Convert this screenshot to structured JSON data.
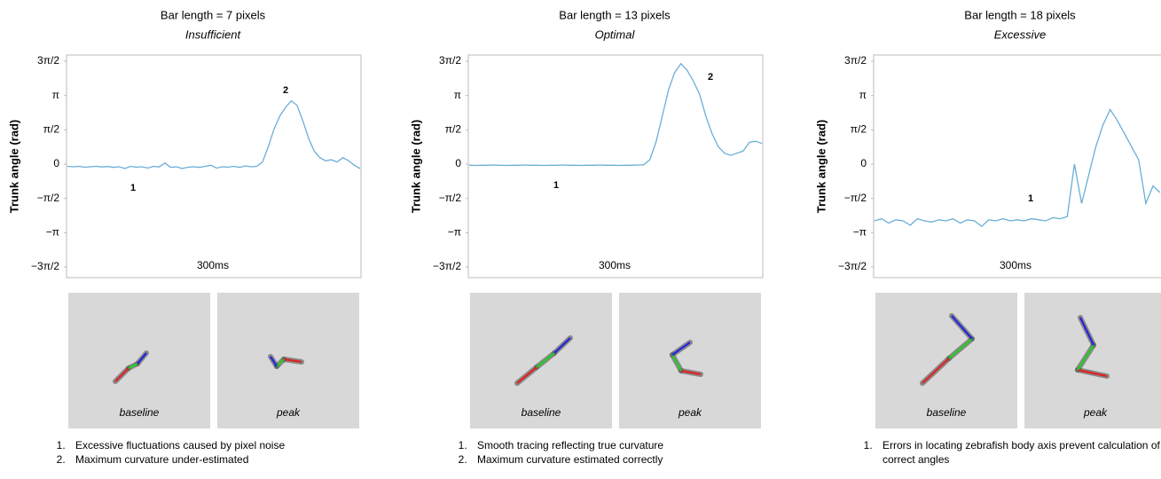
{
  "chart_data": [
    {
      "type": "line",
      "title": "Bar length = 7 pixels",
      "subtitle": "Insufficient",
      "y_label": "Trunk angle (rad)",
      "ylim": [
        -5.2,
        5.0
      ],
      "yticks": [
        {
          "value": -4.7124,
          "label": "−3π/2"
        },
        {
          "value": -3.1416,
          "label": "−π"
        },
        {
          "value": -1.5708,
          "label": "−π/2"
        },
        0,
        {
          "value": 1.5708,
          "label": "π/2"
        },
        {
          "value": 3.1416,
          "label": "π"
        },
        {
          "value": 4.7124,
          "label": "3π/2"
        }
      ],
      "annotations": [
        "1",
        "2",
        "300ms"
      ],
      "series": [
        {
          "color": "#6baed6",
          "values": [
            -0.1,
            -0.12,
            -0.1,
            -0.14,
            -0.12,
            -0.1,
            -0.13,
            -0.11,
            -0.15,
            -0.12,
            -0.2,
            -0.1,
            -0.14,
            -0.12,
            -0.18,
            -0.1,
            -0.13,
            0.05,
            -0.15,
            -0.12,
            -0.2,
            -0.14,
            -0.12,
            -0.15,
            -0.1,
            -0.05,
            -0.18,
            -0.12,
            -0.14,
            -0.1,
            -0.15,
            -0.08,
            -0.12,
            -0.1,
            0.1,
            0.8,
            1.6,
            2.2,
            2.6,
            2.9,
            2.7,
            2.0,
            1.2,
            0.6,
            0.3,
            0.15,
            0.2,
            0.1,
            0.3,
            0.15,
            -0.05,
            -0.2
          ]
        }
      ],
      "image_labels": [
        "baseline",
        "peak"
      ],
      "notes": [
        "Excessive fluctuations caused by pixel noise",
        "Maximum curvature under-estimated"
      ]
    },
    {
      "type": "line",
      "title": "Bar length = 13 pixels",
      "subtitle": "Optimal",
      "y_label": "Trunk angle (rad)",
      "ylim": [
        -5.2,
        5.0
      ],
      "yticks": [
        {
          "value": -4.7124,
          "label": "−3π/2"
        },
        {
          "value": -3.1416,
          "label": "−π"
        },
        {
          "value": -1.5708,
          "label": "−π/2"
        },
        0,
        {
          "value": 1.5708,
          "label": "π/2"
        },
        {
          "value": 3.1416,
          "label": "π"
        },
        {
          "value": 4.7124,
          "label": "3π/2"
        }
      ],
      "annotations": [
        "1",
        "2",
        "300ms"
      ],
      "series": [
        {
          "color": "#6baed6",
          "values": [
            -0.05,
            -0.06,
            -0.05,
            -0.05,
            -0.04,
            -0.05,
            -0.06,
            -0.05,
            -0.05,
            -0.04,
            -0.05,
            -0.05,
            -0.06,
            -0.05,
            -0.05,
            -0.04,
            -0.05,
            -0.05,
            -0.06,
            -0.05,
            -0.05,
            -0.04,
            -0.05,
            -0.05,
            -0.06,
            -0.05,
            -0.05,
            -0.04,
            -0.03,
            0.2,
            1.0,
            2.2,
            3.4,
            4.2,
            4.6,
            4.3,
            3.8,
            3.2,
            2.2,
            1.4,
            0.8,
            0.5,
            0.4,
            0.5,
            0.6,
            1.0,
            1.05,
            0.95
          ]
        }
      ],
      "image_labels": [
        "baseline",
        "peak"
      ],
      "notes": [
        "Smooth tracing reflecting true curvature",
        "Maximum curvature estimated correctly"
      ]
    },
    {
      "type": "line",
      "title": "Bar length = 18 pixels",
      "subtitle": "Excessive",
      "y_label": "Trunk angle (rad)",
      "ylim": [
        -5.2,
        5.0
      ],
      "yticks": [
        {
          "value": -4.7124,
          "label": "−3π/2"
        },
        {
          "value": -3.1416,
          "label": "−π"
        },
        {
          "value": -1.5708,
          "label": "−π/2"
        },
        0,
        {
          "value": 1.5708,
          "label": "π/2"
        },
        {
          "value": 3.1416,
          "label": "π"
        },
        {
          "value": 4.7124,
          "label": "3π/2"
        }
      ],
      "annotations": [
        "1",
        "300ms"
      ],
      "series": [
        {
          "color": "#6baed6",
          "values": [
            -2.6,
            -2.5,
            -2.7,
            -2.55,
            -2.6,
            -2.8,
            -2.5,
            -2.6,
            -2.65,
            -2.55,
            -2.6,
            -2.5,
            -2.7,
            -2.55,
            -2.6,
            -2.85,
            -2.55,
            -2.6,
            -2.5,
            -2.6,
            -2.55,
            -2.6,
            -2.5,
            -2.55,
            -2.6,
            -2.45,
            -2.5,
            -2.4,
            0.0,
            -1.8,
            -0.5,
            0.8,
            1.8,
            2.5,
            2.0,
            1.4,
            0.8,
            0.2,
            -1.8,
            -1.0,
            -1.3
          ]
        }
      ],
      "image_labels": [
        "baseline",
        "peak"
      ],
      "notes": [
        "Errors in locating zebrafish body axis prevent calculation of correct angles"
      ]
    }
  ]
}
